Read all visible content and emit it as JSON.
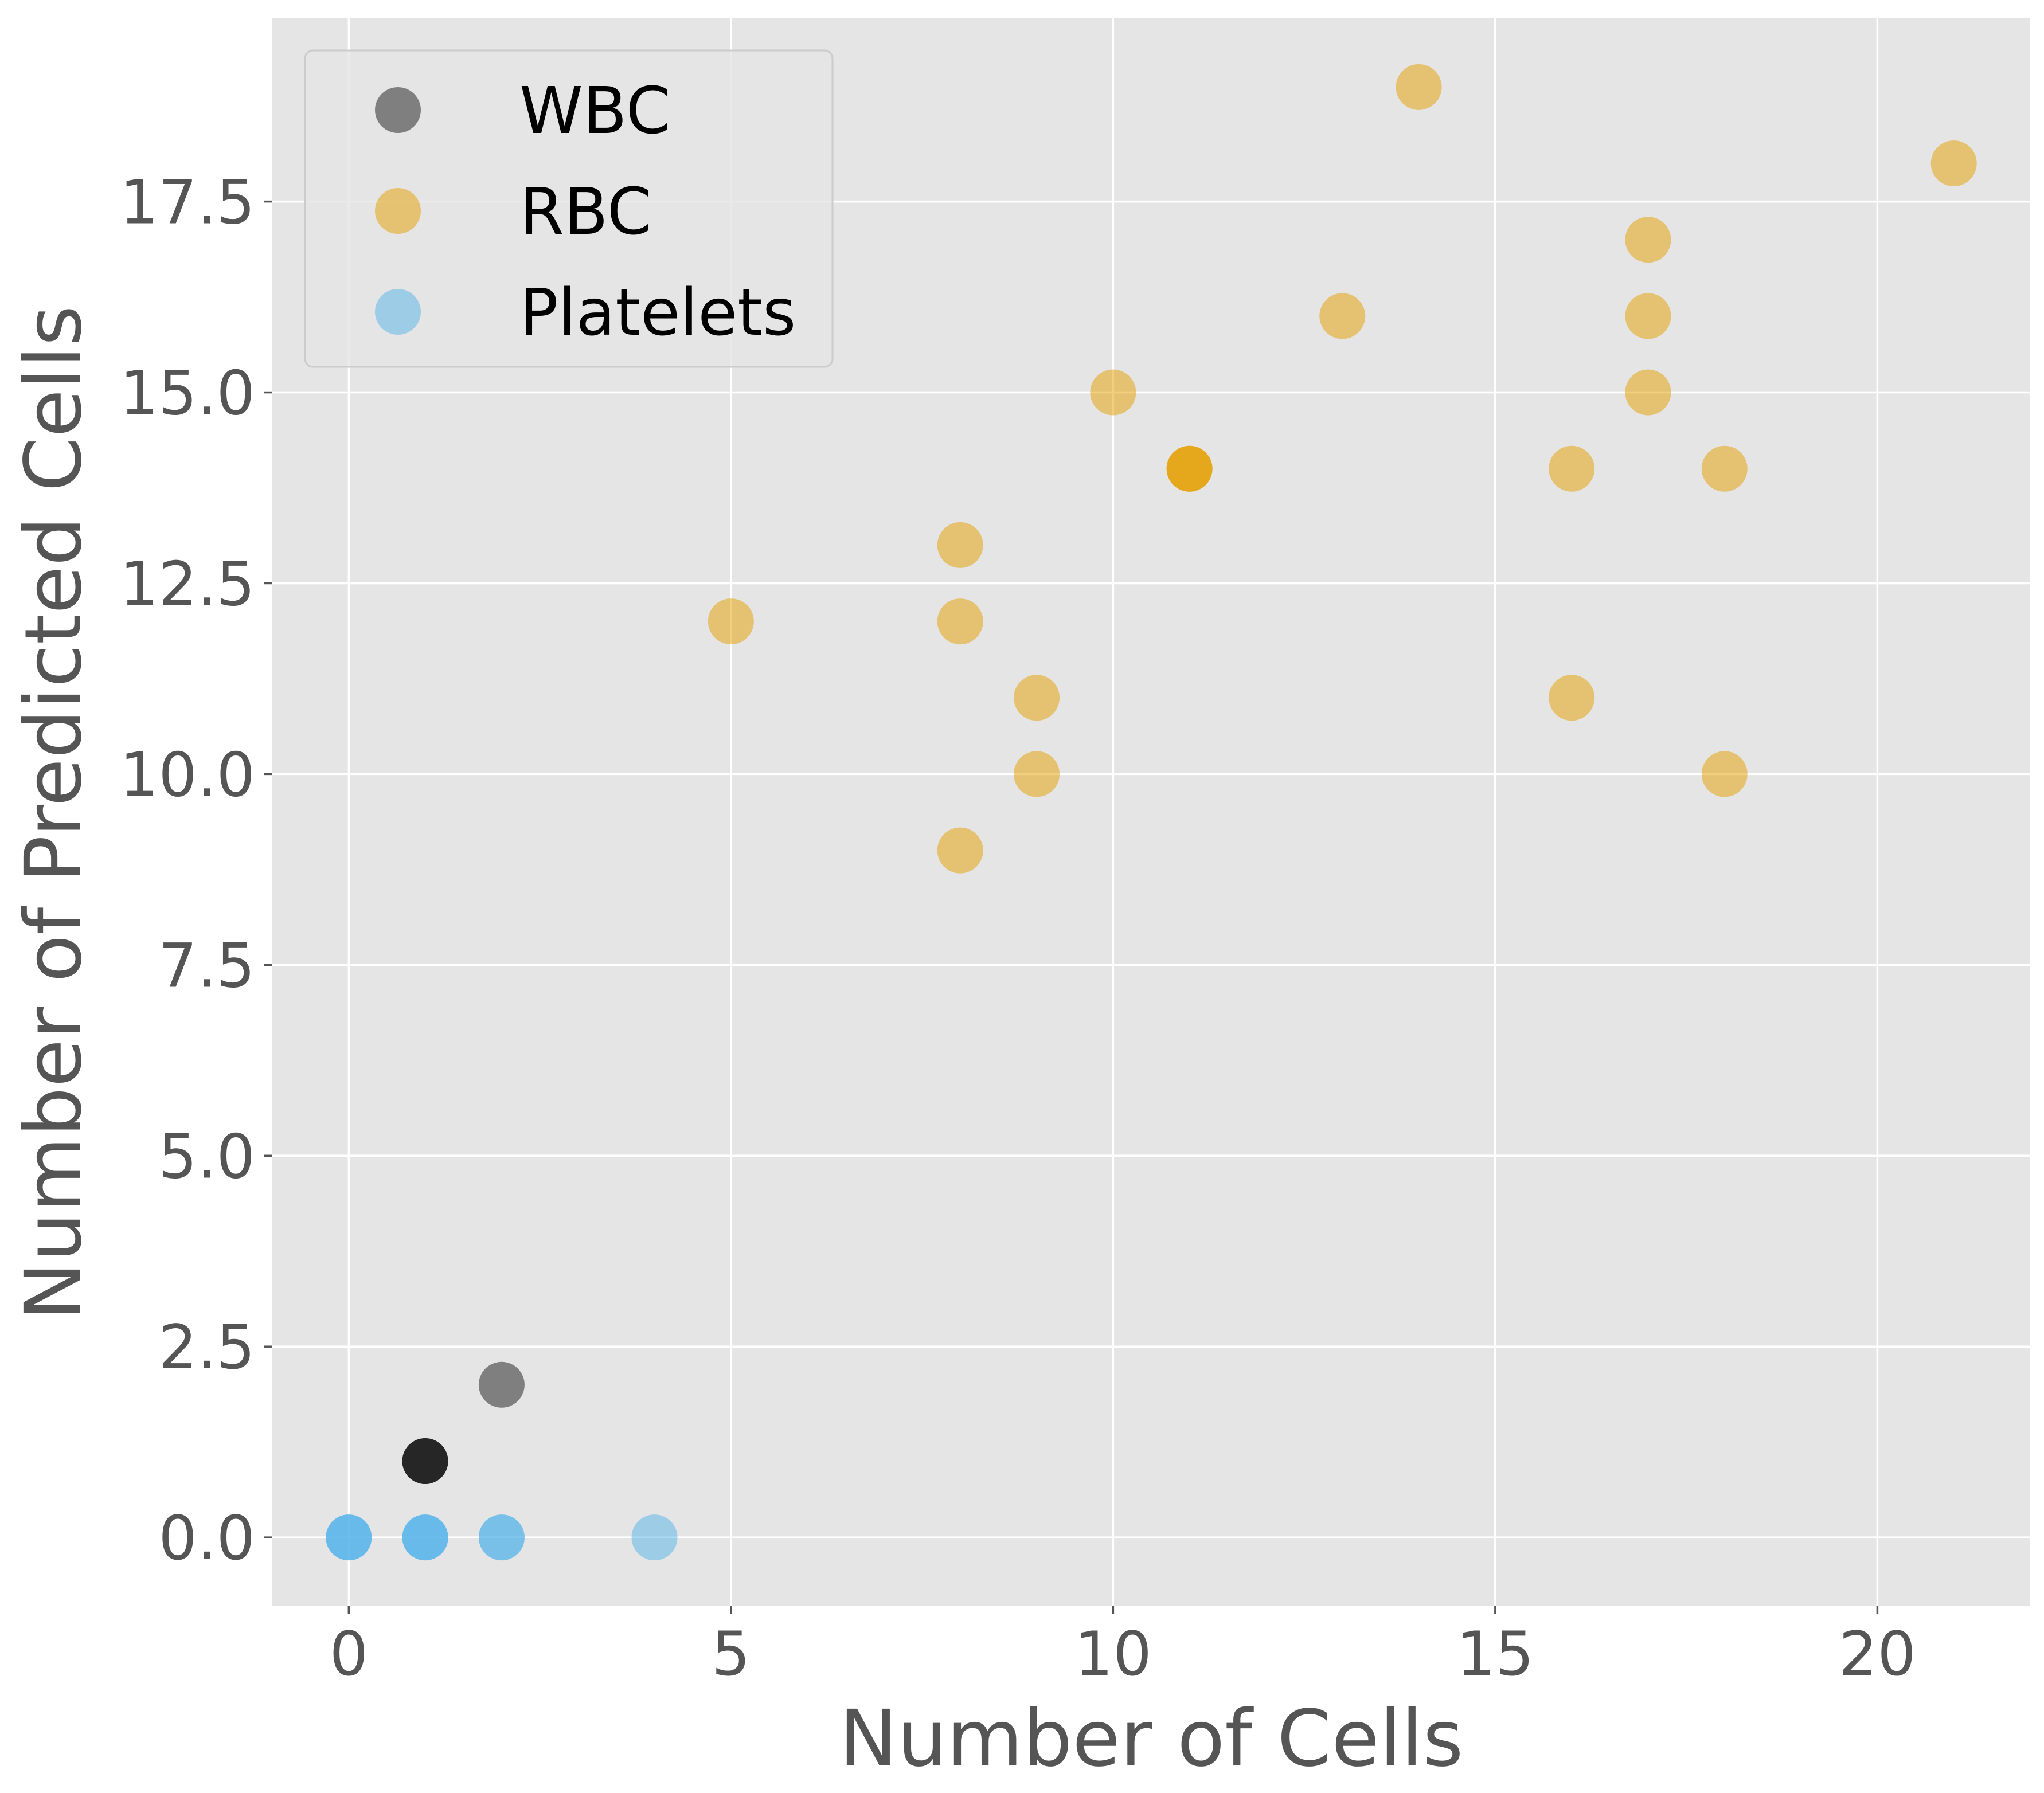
{
  "chart_data": {
    "type": "scatter",
    "title": "",
    "xlabel": "Number of Cells",
    "ylabel": "Number of Predicted Cells",
    "xlim": [
      -1,
      22
    ],
    "ylim": [
      -0.9,
      19.9
    ],
    "xticks": [
      0,
      5,
      10,
      15,
      20
    ],
    "xtick_labels": [
      "0",
      "5",
      "10",
      "15",
      "20"
    ],
    "yticks": [
      0.0,
      2.5,
      5.0,
      7.5,
      10.0,
      12.5,
      15.0,
      17.5
    ],
    "ytick_labels": [
      "0.0",
      "2.5",
      "5.0",
      "7.5",
      "10.0",
      "12.5",
      "15.0",
      "17.5"
    ],
    "grid": true,
    "legend_position": "top-left",
    "series": [
      {
        "name": "WBC",
        "color": "#1a1a1a",
        "points": [
          [
            1,
            1
          ],
          [
            1,
            1
          ],
          [
            1,
            1
          ],
          [
            2,
            2
          ],
          [
            1,
            1
          ]
        ]
      },
      {
        "name": "RBC",
        "color": "#E69F00",
        "points": [
          [
            14,
            19
          ],
          [
            21,
            18
          ],
          [
            17,
            17
          ],
          [
            13,
            16
          ],
          [
            17,
            16
          ],
          [
            10,
            15
          ],
          [
            17,
            15
          ],
          [
            11,
            14
          ],
          [
            11,
            14
          ],
          [
            11,
            14
          ],
          [
            16,
            14
          ],
          [
            18,
            14
          ],
          [
            8,
            13
          ],
          [
            5,
            12
          ],
          [
            8,
            12
          ],
          [
            9,
            11
          ],
          [
            16,
            11
          ],
          [
            9,
            10
          ],
          [
            18,
            10
          ],
          [
            8,
            9
          ]
        ]
      },
      {
        "name": "Platelets",
        "color": "#56B4E9",
        "points": [
          [
            0,
            0
          ],
          [
            0,
            0
          ],
          [
            0,
            0
          ],
          [
            1,
            0
          ],
          [
            1,
            0
          ],
          [
            1,
            0
          ],
          [
            2,
            0
          ],
          [
            2,
            0
          ],
          [
            4,
            0
          ]
        ]
      }
    ]
  }
}
